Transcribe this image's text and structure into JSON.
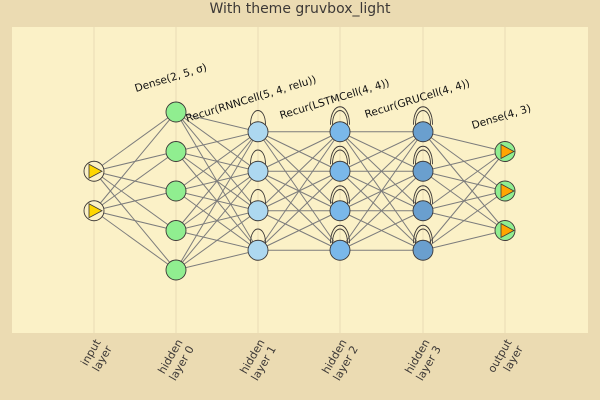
{
  "title": "With theme gruvbox_light",
  "colors": {
    "page_bg": "#ebdbb2",
    "plot_bg": "#fbf1c7",
    "grid": "#e8dcb5",
    "edge": "#7c7c7c",
    "node_stroke": "#3c3836",
    "input_node_fill": "#fbf1c7",
    "input_marker": "#ffd700",
    "output_marker": "#ffa500"
  },
  "layers": [
    {
      "label_lines": [
        "input",
        "layer"
      ],
      "nodes": 2,
      "fill": "#fbf1c7",
      "marker": "input-triangle",
      "recurrent_loops": 0,
      "annotation": ""
    },
    {
      "label_lines": [
        "hidden",
        "layer 0"
      ],
      "nodes": 5,
      "fill": "#90ee90",
      "marker": "",
      "recurrent_loops": 0,
      "annotation": "Dense(2, 5, σ)"
    },
    {
      "label_lines": [
        "hidden",
        "layer 1"
      ],
      "nodes": 4,
      "fill": "#add8f0",
      "marker": "",
      "recurrent_loops": 1,
      "annotation": "Recur(RNNCell(5, 4, relu))"
    },
    {
      "label_lines": [
        "hidden",
        "layer 2"
      ],
      "nodes": 4,
      "fill": "#7ab8ea",
      "marker": "",
      "recurrent_loops": 2,
      "annotation": "Recur(LSTMCell(4, 4))"
    },
    {
      "label_lines": [
        "hidden",
        "layer 3"
      ],
      "nodes": 4,
      "fill": "#6a9fce",
      "marker": "",
      "recurrent_loops": 2,
      "annotation": "Recur(GRUCell(4, 4))"
    },
    {
      "label_lines": [
        "output",
        "layer"
      ],
      "nodes": 3,
      "fill": "#90ee90",
      "marker": "output-triangle",
      "recurrent_loops": 0,
      "annotation": "Dense(4, 3)"
    }
  ]
}
